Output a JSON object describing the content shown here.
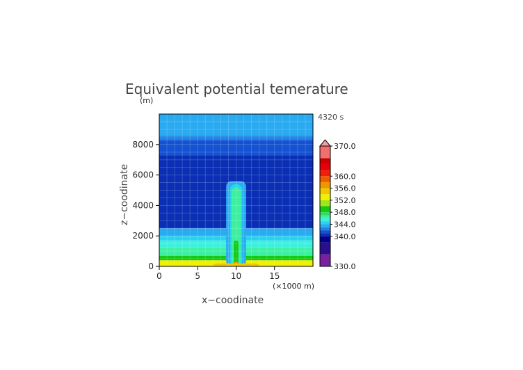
{
  "chart_data": {
    "type": "heatmap",
    "title": "Equivalent potential temerature",
    "time_label": "4320 s",
    "xlabel": "x−coodinate",
    "x_unit": "(×1000 m)",
    "ylabel": "z−coodinate",
    "y_unit": "(m)",
    "xlim": [
      0,
      20
    ],
    "ylim": [
      0,
      10000
    ],
    "x_ticks": [
      "0",
      "5",
      "10",
      "15"
    ],
    "y_ticks": [
      "0",
      "2000",
      "4000",
      "6000",
      "8000"
    ],
    "colorbar": {
      "min": 330,
      "max": 370,
      "tick_labels": [
        "370.0",
        "360.0",
        "356.0",
        "352.0",
        "348.0",
        "344.0",
        "340.0",
        "330.0"
      ],
      "bands": [
        {
          "from": 330,
          "to": 334,
          "color": "#7a1fa0"
        },
        {
          "from": 334,
          "to": 338,
          "color": "#2a0f8c"
        },
        {
          "from": 338,
          "to": 340,
          "color": "#00008c"
        },
        {
          "from": 340,
          "to": 341,
          "color": "#0a2fb5"
        },
        {
          "from": 341,
          "to": 342,
          "color": "#1452d2"
        },
        {
          "from": 342,
          "to": 343,
          "color": "#1e82e6"
        },
        {
          "from": 343,
          "to": 344,
          "color": "#2aaaf0"
        },
        {
          "from": 344,
          "to": 345,
          "color": "#2ad2f0"
        },
        {
          "from": 345,
          "to": 346,
          "color": "#3ef0dc"
        },
        {
          "from": 346,
          "to": 347,
          "color": "#3cf0a0"
        },
        {
          "from": 347,
          "to": 348,
          "color": "#32dc64"
        },
        {
          "from": 348,
          "to": 350,
          "color": "#14c814"
        },
        {
          "from": 350,
          "to": 352,
          "color": "#a0e61e"
        },
        {
          "from": 352,
          "to": 354,
          "color": "#f0f000"
        },
        {
          "from": 354,
          "to": 356,
          "color": "#f0c800"
        },
        {
          "from": 356,
          "to": 358,
          "color": "#f09600"
        },
        {
          "from": 358,
          "to": 360,
          "color": "#f05a00"
        },
        {
          "from": 360,
          "to": 362,
          "color": "#f01e0a"
        },
        {
          "from": 362,
          "to": 364,
          "color": "#e6000a"
        },
        {
          "from": 364,
          "to": 366,
          "color": "#cc0000"
        },
        {
          "from": 366,
          "to": 370,
          "color": "#f07070"
        }
      ],
      "overflow_color": "#f4a0a0"
    },
    "background_layers": [
      {
        "z_from": 0,
        "z_to": 400,
        "theta": 352
      },
      {
        "z_from": 400,
        "z_to": 700,
        "theta": 348
      },
      {
        "z_from": 700,
        "z_to": 1200,
        "theta": 346
      },
      {
        "z_from": 1200,
        "z_to": 1700,
        "theta": 345
      },
      {
        "z_from": 1700,
        "z_to": 2000,
        "theta": 344
      },
      {
        "z_from": 2000,
        "z_to": 2500,
        "theta": 343
      },
      {
        "z_from": 2500,
        "z_to": 7300,
        "theta": 340
      },
      {
        "z_from": 7300,
        "z_to": 8300,
        "theta": 341
      },
      {
        "z_from": 8300,
        "z_to": 8600,
        "theta": 342
      },
      {
        "z_from": 8600,
        "z_to": 10000,
        "theta": 343
      }
    ],
    "plume_layers": [
      {
        "x_from": 8.7,
        "x_to": 11.3,
        "z_from": 0,
        "z_to": 5600,
        "theta": 343
      },
      {
        "x_from": 9.2,
        "x_to": 10.8,
        "z_from": 0,
        "z_to": 5400,
        "theta": 344
      },
      {
        "x_from": 9.4,
        "x_to": 10.6,
        "z_from": 0,
        "z_to": 5200,
        "theta": 346
      },
      {
        "x_from": 9.7,
        "x_to": 10.3,
        "z_from": 0,
        "z_to": 1700,
        "theta": 348
      },
      {
        "x_from": 9.6,
        "x_to": 10.4,
        "z_from": 0,
        "z_to": 300,
        "theta": 356
      },
      {
        "x_from": 7.0,
        "x_to": 13.0,
        "z_from": 0,
        "z_to": 200,
        "theta": 354
      }
    ]
  }
}
